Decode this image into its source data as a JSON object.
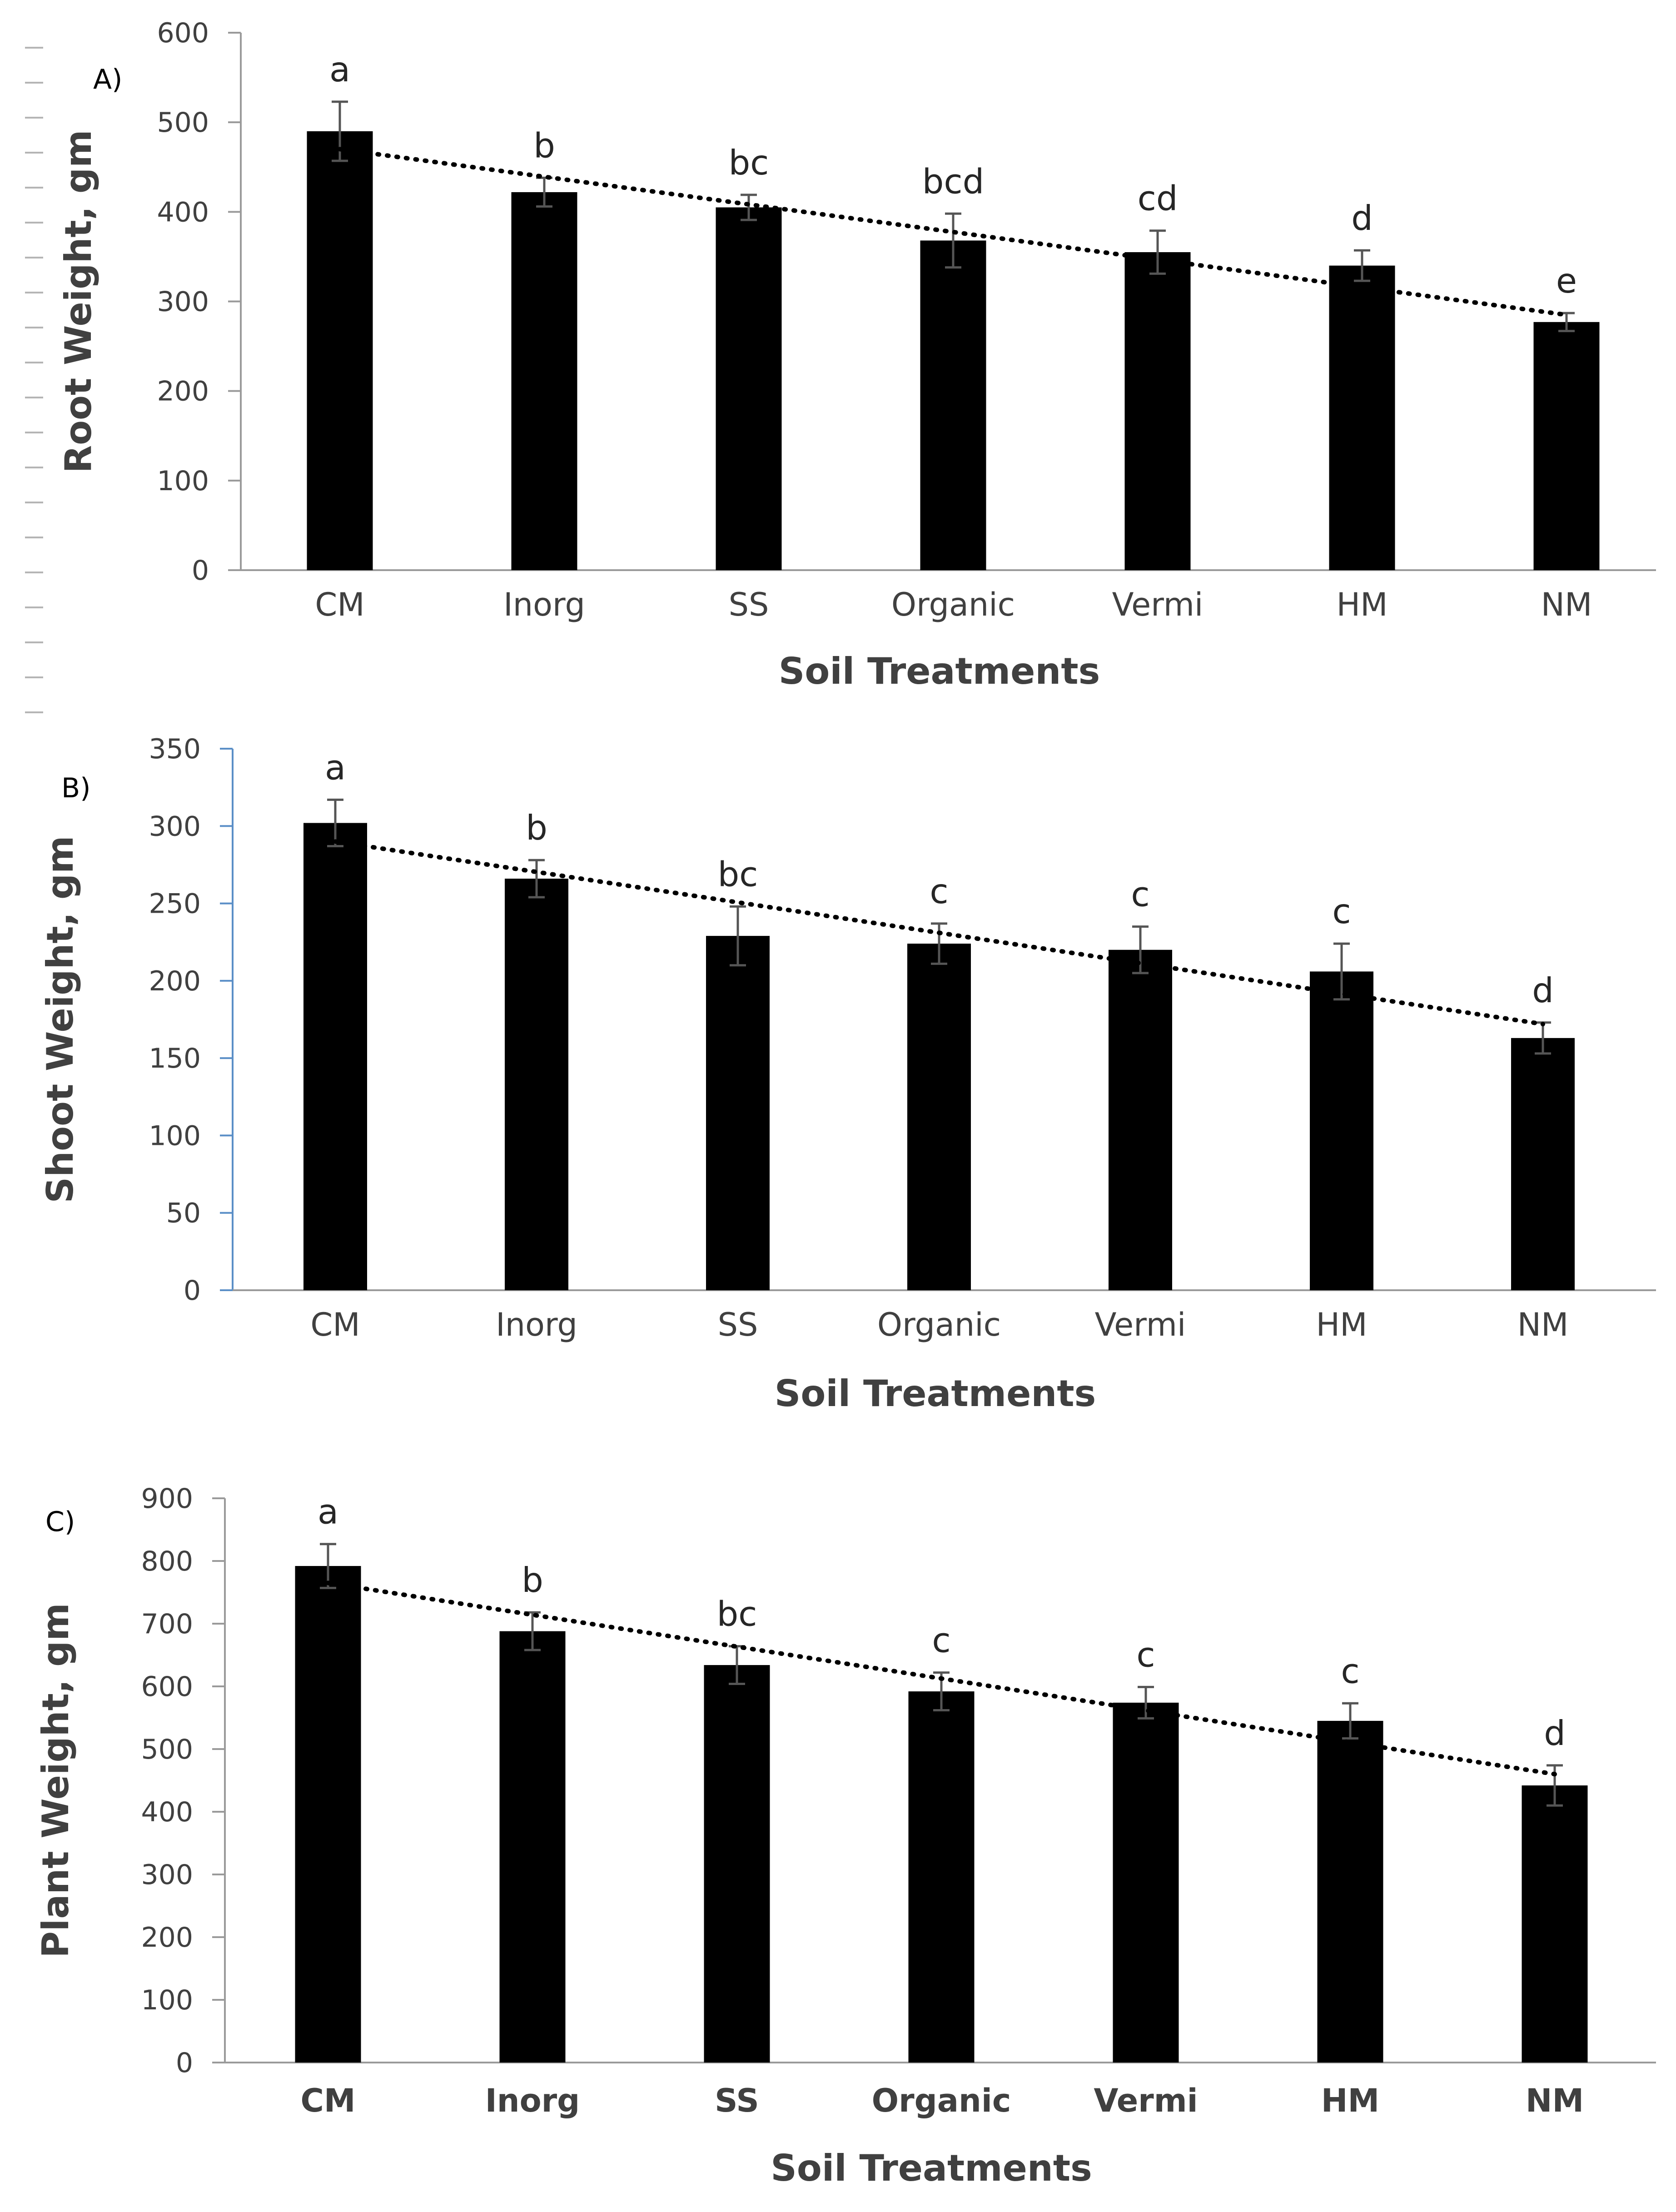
{
  "colors": {
    "bar": "#000000",
    "axis": "#9a9a9a",
    "text": "#404040",
    "blue_axis": "#5b8fc7"
  },
  "chart_data": [
    {
      "type": "bar",
      "panel_label": "A)",
      "title": "",
      "xlabel": "Soil Treatments",
      "ylabel": "Root Weight, gm",
      "ylim": [
        0,
        600
      ],
      "yticks": [
        0,
        100,
        200,
        300,
        400,
        500,
        600
      ],
      "categories": [
        "CM",
        "Inorg",
        "SS",
        "Organic",
        "Vermi",
        "HM",
        "NM"
      ],
      "values": [
        490,
        422,
        405,
        368,
        355,
        340,
        277
      ],
      "errors": [
        33,
        16,
        14,
        30,
        24,
        17,
        10
      ],
      "letters": [
        "a",
        "b",
        "bc",
        "bcd",
        "cd",
        "d",
        "e"
      ],
      "trendline": {
        "style": "dotted",
        "start": 470,
        "end": 285
      },
      "category_style": "normal"
    },
    {
      "type": "bar",
      "panel_label": "B)",
      "title": "",
      "xlabel": "Soil Treatments",
      "ylabel": "Shoot Weight, gm",
      "ylim": [
        0,
        350
      ],
      "yticks": [
        0,
        50,
        100,
        150,
        200,
        250,
        300,
        350
      ],
      "categories": [
        "CM",
        "Inorg",
        "SS",
        "Organic",
        "Vermi",
        "HM",
        "NM"
      ],
      "values": [
        302,
        266,
        229,
        224,
        220,
        206,
        163
      ],
      "errors": [
        15,
        12,
        19,
        13,
        15,
        18,
        10
      ],
      "letters": [
        "a",
        "b",
        "bc",
        "c",
        "c",
        "c",
        "d"
      ],
      "trendline": {
        "style": "dotted",
        "start": 290,
        "end": 172
      },
      "category_style": "normal"
    },
    {
      "type": "bar",
      "panel_label": "C)",
      "title": "",
      "xlabel": "Soil Treatments",
      "ylabel": "Plant Weight, gm",
      "ylim": [
        0,
        900
      ],
      "yticks": [
        0,
        100,
        200,
        300,
        400,
        500,
        600,
        700,
        800,
        900
      ],
      "categories": [
        "CM",
        "Inorg",
        "SS",
        "Organic",
        "Vermi",
        "HM",
        "NM"
      ],
      "values": [
        792,
        688,
        634,
        592,
        574,
        545,
        442
      ],
      "errors": [
        35,
        30,
        30,
        30,
        25,
        28,
        32
      ],
      "letters": [
        "a",
        "b",
        "bc",
        "c",
        "c",
        "c",
        "d"
      ],
      "trendline": {
        "style": "dotted",
        "start": 765,
        "end": 460
      },
      "category_style": "bold"
    }
  ]
}
